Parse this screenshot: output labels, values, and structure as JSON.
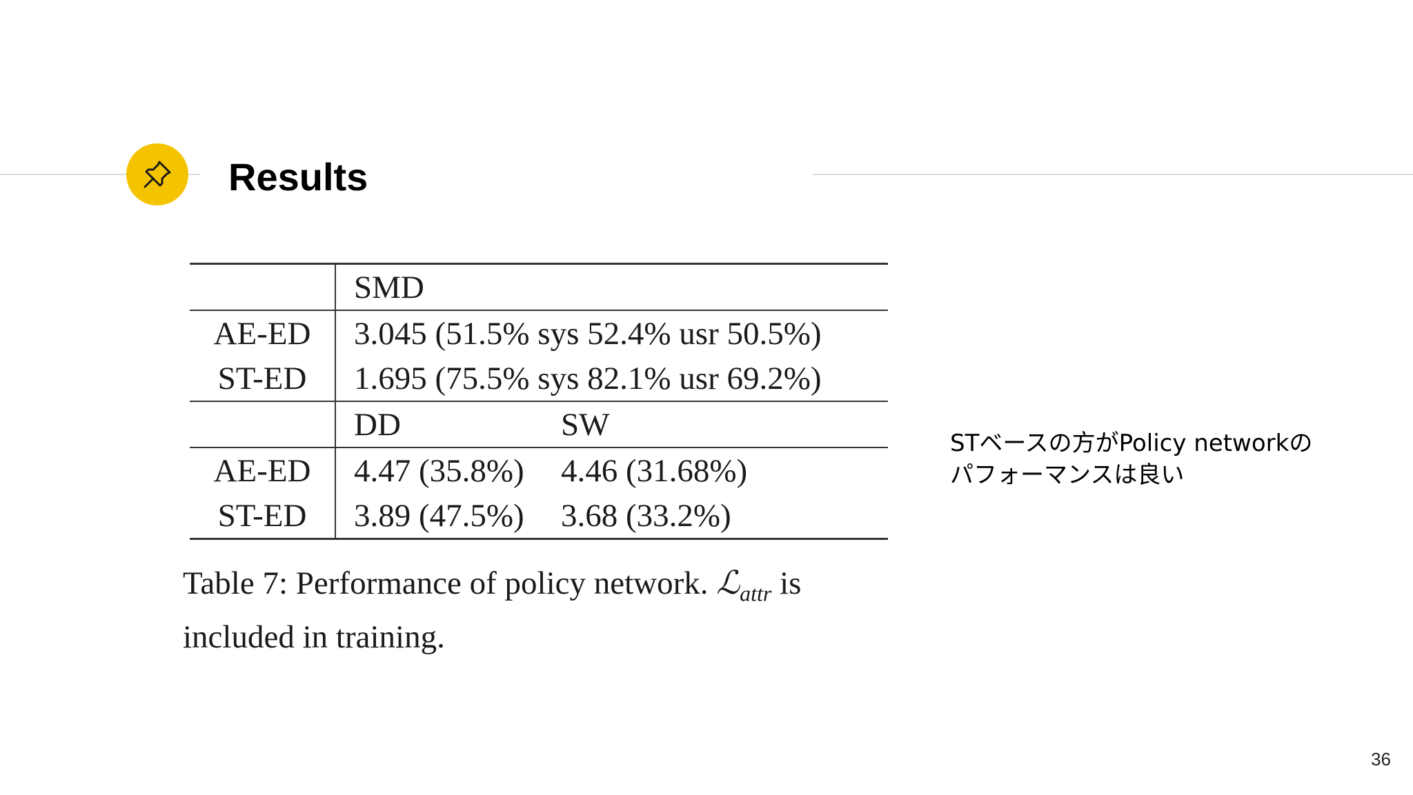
{
  "slide": {
    "title": "Results",
    "pin_icon": "pushpin-icon",
    "accent_color": "#f5c400",
    "page_number": "36"
  },
  "table": {
    "sections": [
      {
        "headers": [
          "SMD"
        ],
        "rows": [
          {
            "label": "AE-ED",
            "cells": [
              "3.045 (51.5% sys 52.4% usr 50.5%)"
            ]
          },
          {
            "label": "ST-ED",
            "cells": [
              "1.695 (75.5% sys 82.1% usr 69.2%)"
            ]
          }
        ]
      },
      {
        "headers": [
          "DD",
          "SW"
        ],
        "rows": [
          {
            "label": "AE-ED",
            "cells": [
              "4.47 (35.8%)",
              "4.46 (31.68%)"
            ]
          },
          {
            "label": "ST-ED",
            "cells": [
              "3.89 (47.5%)",
              "3.68 (33.2%)"
            ]
          }
        ]
      }
    ],
    "caption": {
      "prefix": "Table 7:  Performance of policy network.",
      "math_symbol": "ℒ",
      "math_subscript": "attr",
      "suffix": "is included in training."
    }
  },
  "note": {
    "line1": "STベースの方がPolicy networkの",
    "line2": "パフォーマンスは良い"
  }
}
